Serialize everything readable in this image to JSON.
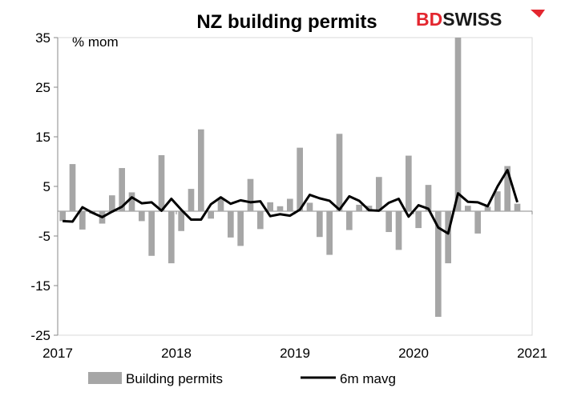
{
  "brand": {
    "logo_text_1": "BD",
    "logo_text_2": "SWISS",
    "logo_color": "#e3262f"
  },
  "chart_data": {
    "type": "bar",
    "title": "NZ building permits",
    "unit_label": "% mom",
    "ylim": [
      -25,
      35
    ],
    "yticks": [
      -25,
      -15,
      -5,
      5,
      15,
      25,
      35
    ],
    "xlim": [
      2017,
      2021
    ],
    "xticks": [
      "2017",
      "2018",
      "2019",
      "2020",
      "2021"
    ],
    "grid": false,
    "legend_position": "bottom",
    "series": [
      {
        "name": "Building permits",
        "type": "bar",
        "color": "#a6a6a6",
        "values": [
          -2,
          9.5,
          -3.7,
          -0.5,
          -2.5,
          3.2,
          8.7,
          3.8,
          -2,
          -9,
          11.3,
          -10.5,
          -4,
          4.5,
          16.5,
          -1.5,
          2.6,
          -5.3,
          -7,
          6.5,
          -3.6,
          1.8,
          1,
          2.5,
          12.8,
          1.7,
          -5.2,
          -8.8,
          15.6,
          -3.8,
          1.3,
          1.1,
          6.9,
          -4.2,
          -7.8,
          11.2,
          -3.4,
          5.3,
          -21.3,
          -10.5,
          35,
          1.1,
          -4.5,
          0.9,
          4,
          9.1,
          1.5
        ]
      },
      {
        "name": "6m mavg",
        "type": "line",
        "color": "#000000",
        "values": [
          -2,
          -2.1,
          0.8,
          -0.3,
          -1.2,
          -0.1,
          0.9,
          2.8,
          1.6,
          1.8,
          0.1,
          2.5,
          0.3,
          -1.7,
          -1.7,
          1.4,
          2.8,
          1.5,
          2.2,
          1.8,
          2,
          -1,
          -0.6,
          -0.9,
          0.3,
          3.3,
          2.6,
          2.1,
          0.3,
          3,
          2.1,
          0.2,
          0.1,
          1.7,
          2.5,
          -1.1,
          1.2,
          0.5,
          -3.3,
          -4.5,
          3.6,
          1.9,
          1.8,
          1,
          5,
          8.3,
          1.8
        ]
      }
    ]
  }
}
